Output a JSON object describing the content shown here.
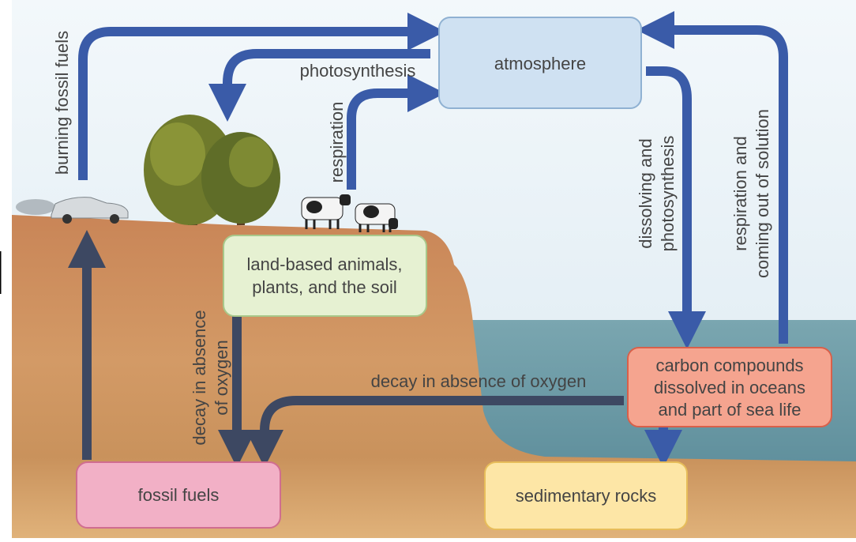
{
  "nodes": [
    {
      "lines": [
        "atmosphere"
      ]
    },
    {
      "lines": [
        "land-based animals,",
        "plants, and the soil"
      ]
    },
    {
      "lines": [
        "carbon compounds",
        "dissolved in oceans",
        "and part of sea life"
      ]
    },
    {
      "lines": [
        "fossil fuels"
      ]
    },
    {
      "lines": [
        "sedimentary rocks"
      ]
    }
  ],
  "edges": [
    {
      "lines": [
        "burning fossil fuels"
      ]
    },
    {
      "lines": [
        "photosynthesis"
      ]
    },
    {
      "lines": [
        "respiration"
      ]
    },
    {
      "lines": [
        "dissolving and",
        "photosynthesis"
      ]
    },
    {
      "lines": [
        "respiration and",
        "coming out of solution"
      ]
    },
    {
      "lines": [
        "decay in absence",
        "of oxygen"
      ]
    },
    {
      "lines": [
        "decay in absence of oxygen"
      ]
    }
  ]
}
